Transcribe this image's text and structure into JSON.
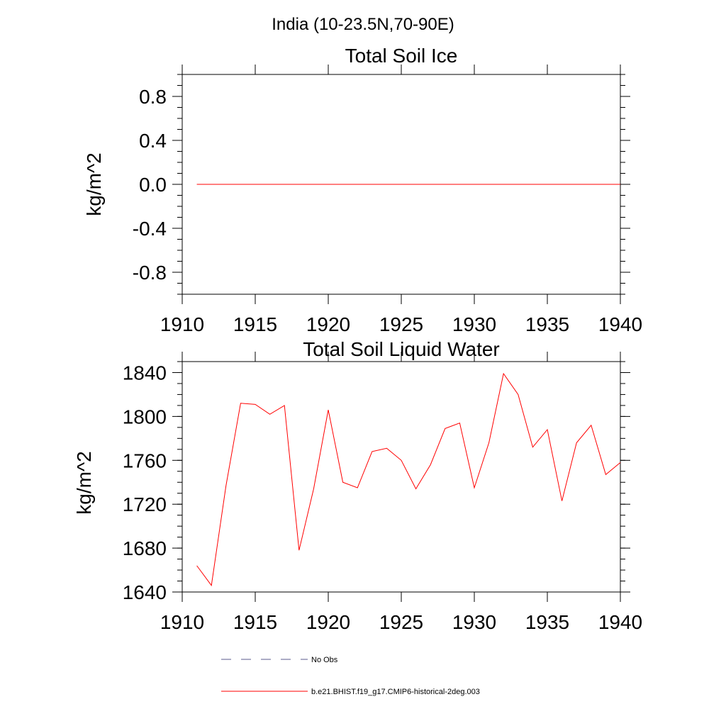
{
  "figure_title": "India (10-23.5N,70-90E)",
  "chart_data": [
    {
      "type": "line",
      "title": "Total Soil Ice",
      "xlabel": "",
      "ylabel": "kg/m^2",
      "xlim": [
        1910,
        1940
      ],
      "ylim": [
        -1.0,
        1.0
      ],
      "xticks": [
        1910,
        1915,
        1920,
        1925,
        1930,
        1935,
        1940
      ],
      "yticks": [
        -0.8,
        -0.4,
        0.0,
        0.4,
        0.8
      ],
      "ytick_labels": [
        "-0.8",
        "-0.4",
        "0.0",
        "0.4",
        "0.8"
      ],
      "series": [
        {
          "name": "b.e21.BHIST.f19_g17.CMIP6-historical-2deg.003",
          "color": "#ff0000",
          "x": [
            1911,
            1912,
            1913,
            1914,
            1915,
            1916,
            1917,
            1918,
            1919,
            1920,
            1921,
            1922,
            1923,
            1924,
            1925,
            1926,
            1927,
            1928,
            1929,
            1930,
            1931,
            1932,
            1933,
            1934,
            1935,
            1936,
            1937,
            1938,
            1939,
            1940
          ],
          "values": [
            0,
            0,
            0,
            0,
            0,
            0,
            0,
            0,
            0,
            0,
            0,
            0,
            0,
            0,
            0,
            0,
            0,
            0,
            0,
            0,
            0,
            0,
            0,
            0,
            0,
            0,
            0,
            0,
            0,
            0
          ]
        }
      ]
    },
    {
      "type": "line",
      "title": "Total Soil Liquid Water",
      "xlabel": "",
      "ylabel": "kg/m^2",
      "xlim": [
        1910,
        1940
      ],
      "ylim": [
        1640,
        1850
      ],
      "xticks": [
        1910,
        1915,
        1920,
        1925,
        1930,
        1935,
        1940
      ],
      "yticks": [
        1640,
        1680,
        1720,
        1760,
        1800,
        1840
      ],
      "ytick_labels": [
        "1640",
        "1680",
        "1720",
        "1760",
        "1800",
        "1840"
      ],
      "series": [
        {
          "name": "b.e21.BHIST.f19_g17.CMIP6-historical-2deg.003",
          "color": "#ff0000",
          "x": [
            1911,
            1912,
            1913,
            1914,
            1915,
            1916,
            1917,
            1918,
            1919,
            1920,
            1921,
            1922,
            1923,
            1924,
            1925,
            1926,
            1927,
            1928,
            1929,
            1930,
            1931,
            1932,
            1933,
            1934,
            1935,
            1936,
            1937,
            1938,
            1939,
            1940
          ],
          "values": [
            1664,
            1646,
            1737,
            1812,
            1811,
            1802,
            1810,
            1678,
            1734,
            1806,
            1740,
            1735,
            1768,
            1771,
            1760,
            1734,
            1756,
            1789,
            1794,
            1735,
            1776,
            1839,
            1820,
            1772,
            1788,
            1723,
            1776,
            1792,
            1747,
            1758
          ]
        }
      ]
    }
  ],
  "legend": {
    "items": [
      {
        "label": "No Obs",
        "color": "#5a5a8c",
        "style": "dashed"
      },
      {
        "label": "b.e21.BHIST.f19_g17.CMIP6-historical-2deg.003",
        "color": "#ff0000",
        "style": "solid"
      }
    ]
  }
}
